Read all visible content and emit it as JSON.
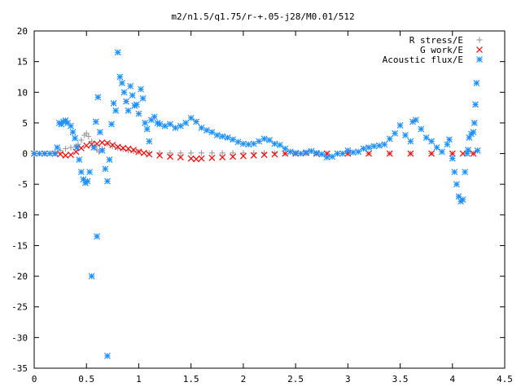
{
  "chart_data": {
    "type": "scatter",
    "title": "m2/n1.5/q1.75/r-+.05-j28/M0.01/512",
    "xlabel": "",
    "ylabel": "",
    "xlim": [
      0,
      4.5
    ],
    "ylim": [
      -35,
      20
    ],
    "x_ticks": [
      "0",
      "0.5",
      "1",
      "1.5",
      "2",
      "2.5",
      "3",
      "3.5",
      "4",
      "4.5"
    ],
    "y_ticks": [
      "20",
      "15",
      "10",
      "5",
      "0",
      "-5",
      "-10",
      "-15",
      "-20",
      "-25",
      "-30",
      "-35"
    ],
    "grid": false,
    "legend_position": "top-right",
    "series": [
      {
        "name": "R stress/E",
        "marker": "plus",
        "color": "#a0a0a0",
        "points": [
          [
            0.0,
            0.0
          ],
          [
            0.1,
            0.0
          ],
          [
            0.2,
            0.1
          ],
          [
            0.25,
            0.5
          ],
          [
            0.3,
            0.8
          ],
          [
            0.35,
            1.0
          ],
          [
            0.4,
            1.2
          ],
          [
            0.42,
            1.5
          ],
          [
            0.45,
            2.2
          ],
          [
            0.48,
            3.0
          ],
          [
            0.5,
            3.3
          ],
          [
            0.52,
            2.8
          ],
          [
            0.55,
            2.0
          ],
          [
            0.58,
            1.2
          ],
          [
            0.6,
            0.6
          ],
          [
            0.62,
            0.3
          ],
          [
            0.65,
            0.8
          ],
          [
            0.7,
            1.6
          ],
          [
            0.75,
            1.2
          ],
          [
            0.8,
            0.9
          ],
          [
            0.85,
            0.7
          ],
          [
            0.9,
            0.5
          ],
          [
            0.95,
            0.4
          ],
          [
            1.0,
            0.3
          ],
          [
            1.1,
            0.1
          ],
          [
            1.2,
            0.1
          ],
          [
            1.3,
            0.1
          ],
          [
            1.4,
            0.1
          ],
          [
            1.5,
            0.1
          ],
          [
            1.6,
            0.1
          ],
          [
            1.7,
            0.1
          ],
          [
            1.8,
            0.1
          ],
          [
            1.9,
            0.1
          ],
          [
            2.0,
            0.1
          ],
          [
            2.1,
            0.1
          ],
          [
            2.2,
            0.1
          ],
          [
            2.3,
            0.1
          ],
          [
            2.4,
            0.0
          ],
          [
            2.5,
            0.0
          ],
          [
            2.6,
            0.0
          ],
          [
            2.7,
            0.0
          ],
          [
            2.8,
            0.0
          ],
          [
            2.9,
            0.0
          ],
          [
            3.0,
            0.0
          ],
          [
            3.2,
            0.0
          ],
          [
            3.4,
            0.0
          ],
          [
            3.6,
            0.0
          ],
          [
            3.8,
            0.0
          ],
          [
            4.0,
            0.0
          ],
          [
            4.2,
            0.0
          ]
        ]
      },
      {
        "name": "G work/E",
        "marker": "cross",
        "color": "#ff0000",
        "points": [
          [
            0.0,
            0.0
          ],
          [
            0.1,
            0.0
          ],
          [
            0.2,
            0.0
          ],
          [
            0.25,
            -0.1
          ],
          [
            0.3,
            -0.3
          ],
          [
            0.35,
            -0.2
          ],
          [
            0.4,
            0.3
          ],
          [
            0.45,
            0.9
          ],
          [
            0.5,
            1.3
          ],
          [
            0.55,
            1.5
          ],
          [
            0.6,
            1.6
          ],
          [
            0.65,
            1.8
          ],
          [
            0.7,
            1.7
          ],
          [
            0.75,
            1.4
          ],
          [
            0.8,
            1.1
          ],
          [
            0.85,
            0.9
          ],
          [
            0.9,
            0.8
          ],
          [
            0.95,
            0.6
          ],
          [
            1.0,
            0.3
          ],
          [
            1.05,
            0.1
          ],
          [
            1.1,
            -0.1
          ],
          [
            1.2,
            -0.3
          ],
          [
            1.3,
            -0.5
          ],
          [
            1.4,
            -0.6
          ],
          [
            1.5,
            -0.8
          ],
          [
            1.55,
            -0.9
          ],
          [
            1.6,
            -0.8
          ],
          [
            1.7,
            -0.7
          ],
          [
            1.8,
            -0.6
          ],
          [
            1.9,
            -0.5
          ],
          [
            2.0,
            -0.4
          ],
          [
            2.1,
            -0.3
          ],
          [
            2.2,
            -0.2
          ],
          [
            2.3,
            -0.1
          ],
          [
            2.4,
            0.0
          ],
          [
            2.5,
            0.0
          ],
          [
            2.6,
            0.1
          ],
          [
            2.7,
            0.0
          ],
          [
            2.8,
            0.0
          ],
          [
            3.0,
            0.0
          ],
          [
            3.2,
            0.0
          ],
          [
            3.4,
            0.0
          ],
          [
            3.6,
            0.0
          ],
          [
            3.8,
            0.0
          ],
          [
            4.0,
            0.0
          ],
          [
            4.1,
            0.0
          ],
          [
            4.2,
            0.0
          ]
        ]
      },
      {
        "name": "Acoustic flux/E",
        "marker": "star",
        "color": "#1e90ff",
        "points": [
          [
            0.0,
            0.0
          ],
          [
            0.05,
            0.0
          ],
          [
            0.1,
            0.0
          ],
          [
            0.15,
            0.0
          ],
          [
            0.2,
            0.0
          ],
          [
            0.22,
            1.0
          ],
          [
            0.24,
            5.0
          ],
          [
            0.26,
            4.8
          ],
          [
            0.28,
            5.2
          ],
          [
            0.3,
            5.4
          ],
          [
            0.32,
            5.0
          ],
          [
            0.35,
            4.5
          ],
          [
            0.37,
            3.5
          ],
          [
            0.39,
            2.5
          ],
          [
            0.41,
            1.0
          ],
          [
            0.43,
            -1.0
          ],
          [
            0.45,
            -3.0
          ],
          [
            0.47,
            -4.2
          ],
          [
            0.49,
            -4.8
          ],
          [
            0.51,
            -4.5
          ],
          [
            0.53,
            -3.0
          ],
          [
            0.55,
            -20.0
          ],
          [
            0.57,
            1.0
          ],
          [
            0.59,
            5.2
          ],
          [
            0.6,
            -13.5
          ],
          [
            0.61,
            9.2
          ],
          [
            0.63,
            3.5
          ],
          [
            0.65,
            0.5
          ],
          [
            0.68,
            -2.5
          ],
          [
            0.7,
            -4.5
          ],
          [
            0.7,
            -33.0
          ],
          [
            0.72,
            -1.0
          ],
          [
            0.74,
            4.8
          ],
          [
            0.76,
            8.2
          ],
          [
            0.78,
            7.0
          ],
          [
            0.8,
            16.5
          ],
          [
            0.82,
            12.5
          ],
          [
            0.84,
            11.5
          ],
          [
            0.86,
            10.0
          ],
          [
            0.88,
            8.5
          ],
          [
            0.9,
            7.0
          ],
          [
            0.92,
            11.0
          ],
          [
            0.94,
            9.5
          ],
          [
            0.96,
            7.8
          ],
          [
            0.98,
            8.0
          ],
          [
            1.0,
            6.5
          ],
          [
            1.02,
            10.5
          ],
          [
            1.04,
            9.0
          ],
          [
            1.06,
            5.0
          ],
          [
            1.08,
            4.0
          ],
          [
            1.1,
            2.0
          ],
          [
            1.12,
            5.5
          ],
          [
            1.15,
            6.0
          ],
          [
            1.18,
            5.0
          ],
          [
            1.2,
            4.8
          ],
          [
            1.25,
            4.5
          ],
          [
            1.3,
            4.8
          ],
          [
            1.35,
            4.2
          ],
          [
            1.4,
            4.5
          ],
          [
            1.45,
            5.0
          ],
          [
            1.5,
            5.8
          ],
          [
            1.55,
            5.2
          ],
          [
            1.6,
            4.2
          ],
          [
            1.65,
            3.8
          ],
          [
            1.7,
            3.5
          ],
          [
            1.75,
            3.0
          ],
          [
            1.8,
            2.8
          ],
          [
            1.85,
            2.6
          ],
          [
            1.9,
            2.3
          ],
          [
            1.95,
            1.9
          ],
          [
            2.0,
            1.6
          ],
          [
            2.05,
            1.5
          ],
          [
            2.1,
            1.6
          ],
          [
            2.15,
            2.0
          ],
          [
            2.2,
            2.4
          ],
          [
            2.25,
            2.2
          ],
          [
            2.3,
            1.6
          ],
          [
            2.35,
            1.4
          ],
          [
            2.4,
            0.8
          ],
          [
            2.45,
            0.3
          ],
          [
            2.5,
            0.1
          ],
          [
            2.55,
            0.0
          ],
          [
            2.6,
            0.2
          ],
          [
            2.65,
            0.4
          ],
          [
            2.7,
            0.1
          ],
          [
            2.75,
            -0.1
          ],
          [
            2.8,
            -0.6
          ],
          [
            2.85,
            -0.5
          ],
          [
            2.9,
            0.0
          ],
          [
            2.95,
            0.0
          ],
          [
            3.0,
            0.5
          ],
          [
            3.05,
            0.2
          ],
          [
            3.1,
            0.3
          ],
          [
            3.15,
            0.8
          ],
          [
            3.2,
            1.0
          ],
          [
            3.25,
            1.2
          ],
          [
            3.3,
            1.3
          ],
          [
            3.35,
            1.5
          ],
          [
            3.4,
            2.4
          ],
          [
            3.45,
            3.3
          ],
          [
            3.5,
            4.6
          ],
          [
            3.55,
            3.0
          ],
          [
            3.6,
            2.0
          ],
          [
            3.62,
            5.2
          ],
          [
            3.65,
            5.5
          ],
          [
            3.7,
            4.0
          ],
          [
            3.75,
            2.6
          ],
          [
            3.8,
            2.0
          ],
          [
            3.85,
            1.0
          ],
          [
            3.9,
            0.3
          ],
          [
            3.95,
            1.5
          ],
          [
            3.97,
            2.3
          ],
          [
            4.0,
            -0.8
          ],
          [
            4.02,
            -3.0
          ],
          [
            4.04,
            -5.0
          ],
          [
            4.06,
            -7.0
          ],
          [
            4.08,
            -7.8
          ],
          [
            4.1,
            -7.5
          ],
          [
            4.12,
            -3.0
          ],
          [
            4.14,
            0.0
          ],
          [
            4.15,
            0.6
          ],
          [
            4.16,
            2.6
          ],
          [
            4.18,
            3.2
          ],
          [
            4.2,
            3.5
          ],
          [
            4.21,
            5.0
          ],
          [
            4.22,
            8.0
          ],
          [
            4.23,
            11.5
          ],
          [
            4.24,
            0.5
          ]
        ]
      }
    ]
  }
}
